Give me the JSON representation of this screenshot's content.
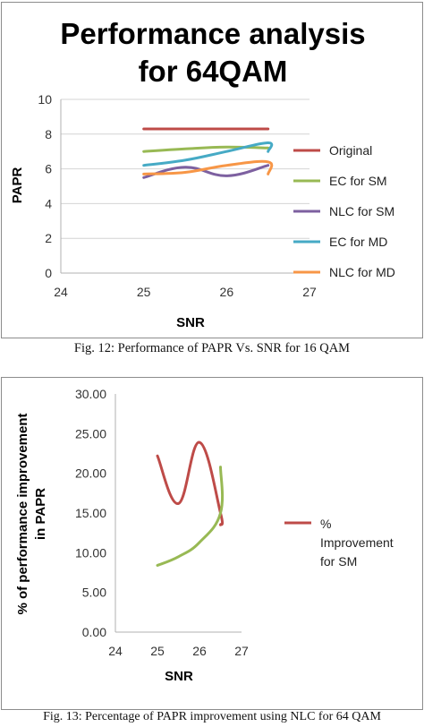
{
  "chart_data": [
    {
      "type": "line",
      "title": "Performance analysis for 64QAM",
      "title_lines": [
        "Performance analysis",
        "for 64QAM"
      ],
      "xlabel": "SNR",
      "ylabel": "PAPR",
      "xlim": [
        24,
        27
      ],
      "ylim": [
        0,
        10
      ],
      "xticks": [
        24,
        25,
        26,
        27
      ],
      "yticks": [
        0,
        2,
        4,
        6,
        8,
        10
      ],
      "grid": "horizontal",
      "legend_position": "right",
      "series": [
        {
          "name": "Original",
          "color": "#be4b48",
          "x": [
            25,
            25.5,
            26,
            26.5
          ],
          "y": [
            8.3,
            8.3,
            8.3,
            8.3
          ]
        },
        {
          "name": "EC for SM",
          "color": "#98b954",
          "x": [
            25,
            25.5,
            26,
            26.5
          ],
          "y": [
            7.0,
            7.15,
            7.25,
            7.2
          ]
        },
        {
          "name": "NLC for SM",
          "color": "#7d60a0",
          "x": [
            25,
            25.5,
            26,
            26.5
          ],
          "y": [
            5.5,
            6.1,
            5.6,
            6.2
          ]
        },
        {
          "name": "EC for MD",
          "color": "#46aac5",
          "x": [
            25,
            25.5,
            26,
            26.5,
            26.5
          ],
          "y": [
            6.2,
            6.5,
            7.0,
            7.5,
            7.0
          ]
        },
        {
          "name": "NLC for MD",
          "color": "#f79646",
          "x": [
            25,
            25.5,
            26,
            26.5,
            26.5
          ],
          "y": [
            5.7,
            5.8,
            6.2,
            6.4,
            5.7
          ]
        }
      ]
    },
    {
      "type": "line",
      "title": "",
      "xlabel": "SNR",
      "ylabel": "% of performance improvement in PAPR",
      "ylabel_lines": [
        "% of performance improvement",
        "in PAPR"
      ],
      "xlim": [
        24,
        27
      ],
      "ylim": [
        0,
        30
      ],
      "xticks": [
        24,
        25,
        26,
        27
      ],
      "yticks": [
        "0.00",
        "5.00",
        "10.00",
        "15.00",
        "20.00",
        "25.00",
        "30.00"
      ],
      "grid": "none",
      "legend_position": "right",
      "series": [
        {
          "name": "% Improvement for SM",
          "legend_lines": [
            "%",
            "Improvement",
            "for SM"
          ],
          "color": "#be4b48",
          "x": [
            25,
            25.5,
            26,
            26.5,
            26.5
          ],
          "y": [
            22.2,
            16.2,
            23.9,
            15.0,
            13.5
          ]
        },
        {
          "name": "",
          "color": "#98b954",
          "x": [
            25,
            25.5,
            26,
            26.5,
            26.5
          ],
          "y": [
            8.4,
            9.5,
            11.3,
            15.0,
            20.8
          ]
        }
      ]
    }
  ],
  "captions": {
    "fig12": "Fig. 12: Performance of PAPR Vs. SNR for 16 QAM",
    "fig13": "Fig. 13: Percentage of PAPR improvement using NLC for 64 QAM"
  }
}
